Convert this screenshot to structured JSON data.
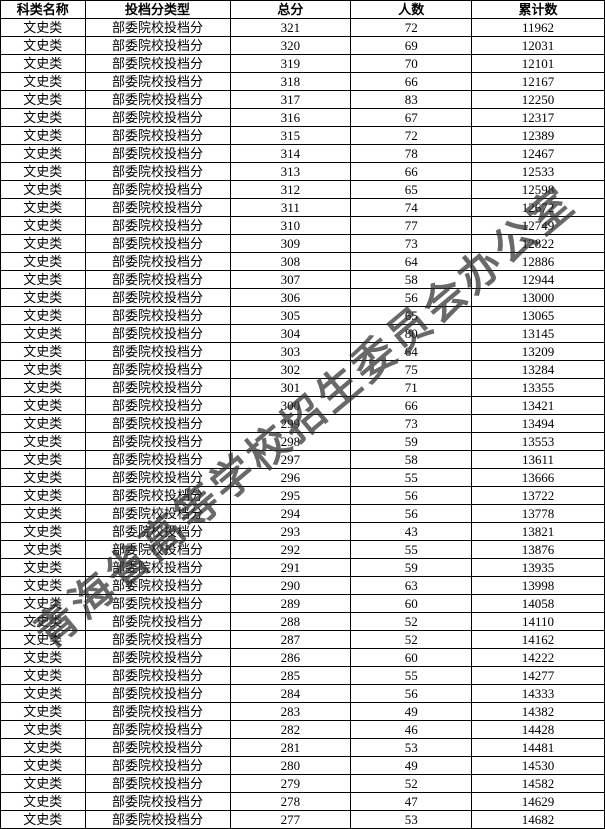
{
  "watermark_text": "青海省高等学校招生委员会办公室",
  "watermark_color": "#2b2b2b",
  "table": {
    "columns": [
      "科类名称",
      "投档分类型",
      "总分",
      "人数",
      "累计数"
    ],
    "col_widths": [
      "14%",
      "24%",
      "20%",
      "20%",
      "22%"
    ],
    "header_font_weight": "bold",
    "border_color": "#000000",
    "background_color": "#ffffff",
    "text_color": "#000000",
    "font_size_pt": 10,
    "rows": [
      [
        "文史类",
        "部委院校投档分",
        "321",
        "72",
        "11962"
      ],
      [
        "文史类",
        "部委院校投档分",
        "320",
        "69",
        "12031"
      ],
      [
        "文史类",
        "部委院校投档分",
        "319",
        "70",
        "12101"
      ],
      [
        "文史类",
        "部委院校投档分",
        "318",
        "66",
        "12167"
      ],
      [
        "文史类",
        "部委院校投档分",
        "317",
        "83",
        "12250"
      ],
      [
        "文史类",
        "部委院校投档分",
        "316",
        "67",
        "12317"
      ],
      [
        "文史类",
        "部委院校投档分",
        "315",
        "72",
        "12389"
      ],
      [
        "文史类",
        "部委院校投档分",
        "314",
        "78",
        "12467"
      ],
      [
        "文史类",
        "部委院校投档分",
        "313",
        "66",
        "12533"
      ],
      [
        "文史类",
        "部委院校投档分",
        "312",
        "65",
        "12598"
      ],
      [
        "文史类",
        "部委院校投档分",
        "311",
        "74",
        "12672"
      ],
      [
        "文史类",
        "部委院校投档分",
        "310",
        "77",
        "12749"
      ],
      [
        "文史类",
        "部委院校投档分",
        "309",
        "73",
        "12822"
      ],
      [
        "文史类",
        "部委院校投档分",
        "308",
        "64",
        "12886"
      ],
      [
        "文史类",
        "部委院校投档分",
        "307",
        "58",
        "12944"
      ],
      [
        "文史类",
        "部委院校投档分",
        "306",
        "56",
        "13000"
      ],
      [
        "文史类",
        "部委院校投档分",
        "305",
        "65",
        "13065"
      ],
      [
        "文史类",
        "部委院校投档分",
        "304",
        "80",
        "13145"
      ],
      [
        "文史类",
        "部委院校投档分",
        "303",
        "64",
        "13209"
      ],
      [
        "文史类",
        "部委院校投档分",
        "302",
        "75",
        "13284"
      ],
      [
        "文史类",
        "部委院校投档分",
        "301",
        "71",
        "13355"
      ],
      [
        "文史类",
        "部委院校投档分",
        "300",
        "66",
        "13421"
      ],
      [
        "文史类",
        "部委院校投档分",
        "299",
        "73",
        "13494"
      ],
      [
        "文史类",
        "部委院校投档分",
        "298",
        "59",
        "13553"
      ],
      [
        "文史类",
        "部委院校投档分",
        "297",
        "58",
        "13611"
      ],
      [
        "文史类",
        "部委院校投档分",
        "296",
        "55",
        "13666"
      ],
      [
        "文史类",
        "部委院校投档分",
        "295",
        "56",
        "13722"
      ],
      [
        "文史类",
        "部委院校投档分",
        "294",
        "56",
        "13778"
      ],
      [
        "文史类",
        "部委院校投档分",
        "293",
        "43",
        "13821"
      ],
      [
        "文史类",
        "部委院校投档分",
        "292",
        "55",
        "13876"
      ],
      [
        "文史类",
        "部委院校投档分",
        "291",
        "59",
        "13935"
      ],
      [
        "文史类",
        "部委院校投档分",
        "290",
        "63",
        "13998"
      ],
      [
        "文史类",
        "部委院校投档分",
        "289",
        "60",
        "14058"
      ],
      [
        "文史类",
        "部委院校投档分",
        "288",
        "52",
        "14110"
      ],
      [
        "文史类",
        "部委院校投档分",
        "287",
        "52",
        "14162"
      ],
      [
        "文史类",
        "部委院校投档分",
        "286",
        "60",
        "14222"
      ],
      [
        "文史类",
        "部委院校投档分",
        "285",
        "55",
        "14277"
      ],
      [
        "文史类",
        "部委院校投档分",
        "284",
        "56",
        "14333"
      ],
      [
        "文史类",
        "部委院校投档分",
        "283",
        "49",
        "14382"
      ],
      [
        "文史类",
        "部委院校投档分",
        "282",
        "46",
        "14428"
      ],
      [
        "文史类",
        "部委院校投档分",
        "281",
        "53",
        "14481"
      ],
      [
        "文史类",
        "部委院校投档分",
        "280",
        "49",
        "14530"
      ],
      [
        "文史类",
        "部委院校投档分",
        "279",
        "52",
        "14582"
      ],
      [
        "文史类",
        "部委院校投档分",
        "278",
        "47",
        "14629"
      ],
      [
        "文史类",
        "部委院校投档分",
        "277",
        "53",
        "14682"
      ]
    ]
  }
}
